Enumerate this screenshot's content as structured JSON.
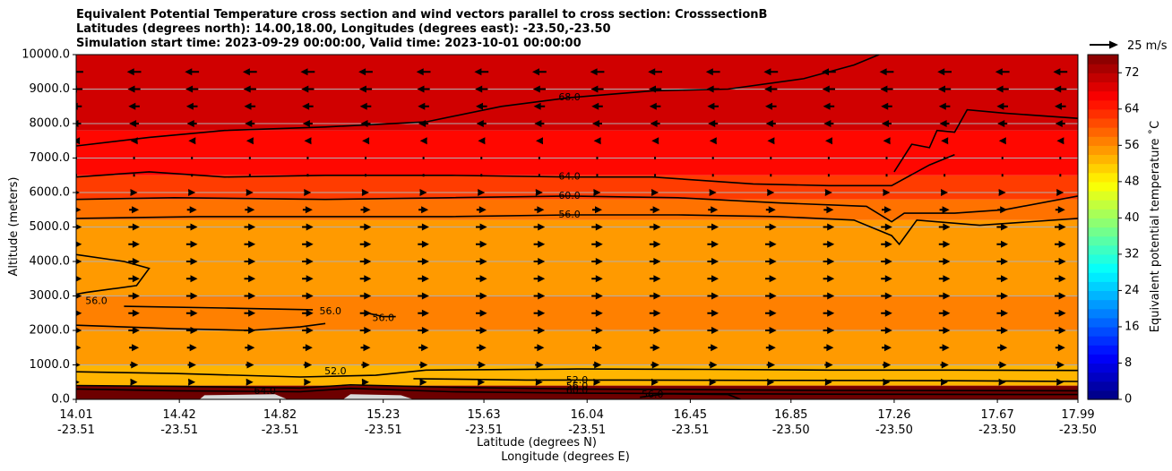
{
  "chart_data": {
    "type": "heatmap",
    "title_lines": [
      "Equivalent Potential Temperature cross section and wind vectors parallel to cross section: CrosssectionB",
      "Latitudes (degrees north): 14.00,18.00, Longitudes (degrees east): -23.50,-23.50",
      "Simulation start time: 2023-09-29 00:00:00, Valid time: 2023-10-01 00:00:00"
    ],
    "xlabel_line1": "Latitude (degrees N)",
    "xlabel_line2": "Longitude (degrees E)",
    "ylabel": "Altitude (meters)",
    "ylim": [
      0,
      10000
    ],
    "yticks": [
      {
        "value": 0,
        "label": "0.0"
      },
      {
        "value": 1000,
        "label": "1000.0"
      },
      {
        "value": 2000,
        "label": "2000.0"
      },
      {
        "value": 3000,
        "label": "3000.0"
      },
      {
        "value": 4000,
        "label": "4000.0"
      },
      {
        "value": 5000,
        "label": "5000.0"
      },
      {
        "value": 6000,
        "label": "6000.0"
      },
      {
        "value": 7000,
        "label": "7000.0"
      },
      {
        "value": 8000,
        "label": "8000.0"
      },
      {
        "value": 9000,
        "label": "9000.0"
      },
      {
        "value": 10000,
        "label": "10000.0"
      }
    ],
    "xlim": [
      14.01,
      17.99
    ],
    "xticks": [
      {
        "lat": 14.01,
        "lat_label": "14.01",
        "lon_label": "-23.51"
      },
      {
        "lat": 14.42,
        "lat_label": "14.42",
        "lon_label": "-23.51"
      },
      {
        "lat": 14.82,
        "lat_label": "14.82",
        "lon_label": "-23.51"
      },
      {
        "lat": 15.23,
        "lat_label": "15.23",
        "lon_label": "-23.51"
      },
      {
        "lat": 15.63,
        "lat_label": "15.63",
        "lon_label": "-23.51"
      },
      {
        "lat": 16.04,
        "lat_label": "16.04",
        "lon_label": "-23.51"
      },
      {
        "lat": 16.45,
        "lat_label": "16.45",
        "lon_label": "-23.51"
      },
      {
        "lat": 16.85,
        "lat_label": "16.85",
        "lon_label": "-23.50"
      },
      {
        "lat": 17.26,
        "lat_label": "17.26",
        "lon_label": "-23.50"
      },
      {
        "lat": 17.67,
        "lat_label": "17.67",
        "lon_label": "-23.50"
      },
      {
        "lat": 17.99,
        "lat_label": "17.99",
        "lon_label": "-23.50"
      }
    ],
    "grid": "horizontal",
    "colorbar": {
      "label": "Equivalent potential temperature $^\\circ$C",
      "label_display": "Equivalent potential temperature ˚C",
      "min": 0,
      "max": 76,
      "step": 2,
      "ticks": [
        "0",
        "8",
        "16",
        "24",
        "32",
        "40",
        "48",
        "56",
        "64",
        "72"
      ],
      "colormap": "jet"
    },
    "quiver_key": {
      "label": "25 m/s",
      "speed": 25
    },
    "theta_e_field": {
      "note_levels": "band boundaries by altitude (m) across section",
      "layers": [
        {
          "from": 0,
          "to": 400,
          "value": 76
        },
        {
          "from": 400,
          "to": 1000,
          "value": 53
        },
        {
          "from": 1000,
          "to": 2000,
          "value": 55
        },
        {
          "from": 2000,
          "to": 3000,
          "value": 57
        },
        {
          "from": 3000,
          "to": 5200,
          "value": 55
        },
        {
          "from": 5200,
          "to": 5800,
          "value": 58
        },
        {
          "from": 5800,
          "to": 6500,
          "value": 62
        },
        {
          "from": 6500,
          "to": 7800,
          "value": 66
        },
        {
          "from": 7800,
          "to": 10000,
          "value": 70
        }
      ]
    },
    "contour_labels": [
      {
        "text": "68.0",
        "lat": 15.97,
        "alt": 8750
      },
      {
        "text": "64.0",
        "lat": 15.97,
        "alt": 6450
      },
      {
        "text": "60.0",
        "lat": 15.97,
        "alt": 5900
      },
      {
        "text": "56.0",
        "lat": 15.97,
        "alt": 5350
      },
      {
        "text": "56.0",
        "lat": 14.09,
        "alt": 2850
      },
      {
        "text": "56.0",
        "lat": 15.02,
        "alt": 2550
      },
      {
        "text": "56.0",
        "lat": 15.23,
        "alt": 2350
      },
      {
        "text": "52.0",
        "lat": 15.04,
        "alt": 800
      },
      {
        "text": "52.0",
        "lat": 16.0,
        "alt": 550
      },
      {
        "text": "56.0",
        "lat": 16.0,
        "alt": 380
      },
      {
        "text": "60.0",
        "lat": 16.0,
        "alt": 250
      },
      {
        "text": "64.0",
        "lat": 14.76,
        "alt": 230
      },
      {
        "text": "56.0",
        "lat": 16.3,
        "alt": 130
      }
    ],
    "wind_rows": [
      {
        "alt": 9500,
        "dir": -1,
        "speed": 8
      },
      {
        "alt": 9000,
        "dir": -1,
        "speed": 7
      },
      {
        "alt": 8500,
        "dir": -1,
        "speed": 6
      },
      {
        "alt": 8000,
        "dir": -1,
        "speed": 5
      },
      {
        "alt": 7500,
        "dir": -1,
        "speed": 3
      },
      {
        "alt": 7000,
        "dir": 0,
        "speed": 0
      },
      {
        "alt": 6500,
        "dir": 0,
        "speed": 0
      },
      {
        "alt": 6000,
        "dir": 1,
        "speed": 3
      },
      {
        "alt": 5500,
        "dir": 1,
        "speed": 5
      },
      {
        "alt": 5000,
        "dir": 1,
        "speed": 6
      },
      {
        "alt": 4500,
        "dir": 1,
        "speed": 6
      },
      {
        "alt": 4000,
        "dir": 1,
        "speed": 6
      },
      {
        "alt": 3500,
        "dir": 1,
        "speed": 6
      },
      {
        "alt": 3000,
        "dir": 1,
        "speed": 6
      },
      {
        "alt": 2500,
        "dir": 1,
        "speed": 6
      },
      {
        "alt": 2000,
        "dir": 1,
        "speed": 6
      },
      {
        "alt": 1500,
        "dir": 1,
        "speed": 5
      },
      {
        "alt": 1000,
        "dir": 1,
        "speed": 4
      },
      {
        "alt": 500,
        "dir": 1,
        "speed": 3
      }
    ],
    "wind_columns": [
      14.01,
      14.24,
      14.47,
      14.7,
      14.93,
      15.16,
      15.39,
      15.62,
      15.85,
      16.08,
      16.31,
      16.54,
      16.77,
      17.0,
      17.23,
      17.46,
      17.69,
      17.92
    ]
  }
}
